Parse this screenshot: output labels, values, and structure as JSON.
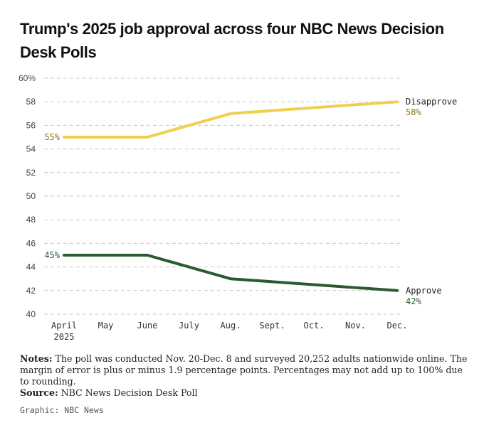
{
  "title": "Trump's 2025 job approval across four NBC News Decision Desk Polls",
  "chart_data": {
    "type": "line",
    "title": "Trump's 2025 job approval across four NBC News Decision Desk Polls",
    "categories": [
      "April\n2025",
      "May",
      "June",
      "July",
      "Aug.",
      "Sept.",
      "Oct.",
      "Nov.",
      "Dec."
    ],
    "ylim": [
      40,
      60
    ],
    "yticks": [
      40,
      42,
      44,
      46,
      48,
      50,
      52,
      54,
      56,
      58,
      60
    ],
    "ytick_labels": [
      "40",
      "42",
      "44",
      "46",
      "48",
      "50",
      "52",
      "54",
      "56",
      "58",
      "60%"
    ],
    "grid": true,
    "series": [
      {
        "name": "Disapprove",
        "color": "#efd04e",
        "label_color": "#8a7318",
        "points": [
          {
            "x": 0,
            "y": 55
          },
          {
            "x": 2,
            "y": 55
          },
          {
            "x": 4,
            "y": 57
          },
          {
            "x": 8,
            "y": 58
          }
        ],
        "start_label": "55%",
        "end_label": "58%"
      },
      {
        "name": "Approve",
        "color": "#2b5a2e",
        "label_color": "#2b5a2e",
        "points": [
          {
            "x": 0,
            "y": 45
          },
          {
            "x": 2,
            "y": 45
          },
          {
            "x": 4,
            "y": 43
          },
          {
            "x": 8,
            "y": 42
          }
        ],
        "start_label": "45%",
        "end_label": "42%"
      }
    ]
  },
  "notes": {
    "label": "Notes:",
    "text": "The poll was conducted Nov. 20-Dec. 8 and surveyed 20,252 adults nationwide online. The margin of error is plus or minus 1.9 percentage points. Percentages may not add up to 100% due to rounding.",
    "source_label": "Source:",
    "source_text": "NBC News Decision Desk Poll"
  },
  "credit": "Graphic: NBC News"
}
